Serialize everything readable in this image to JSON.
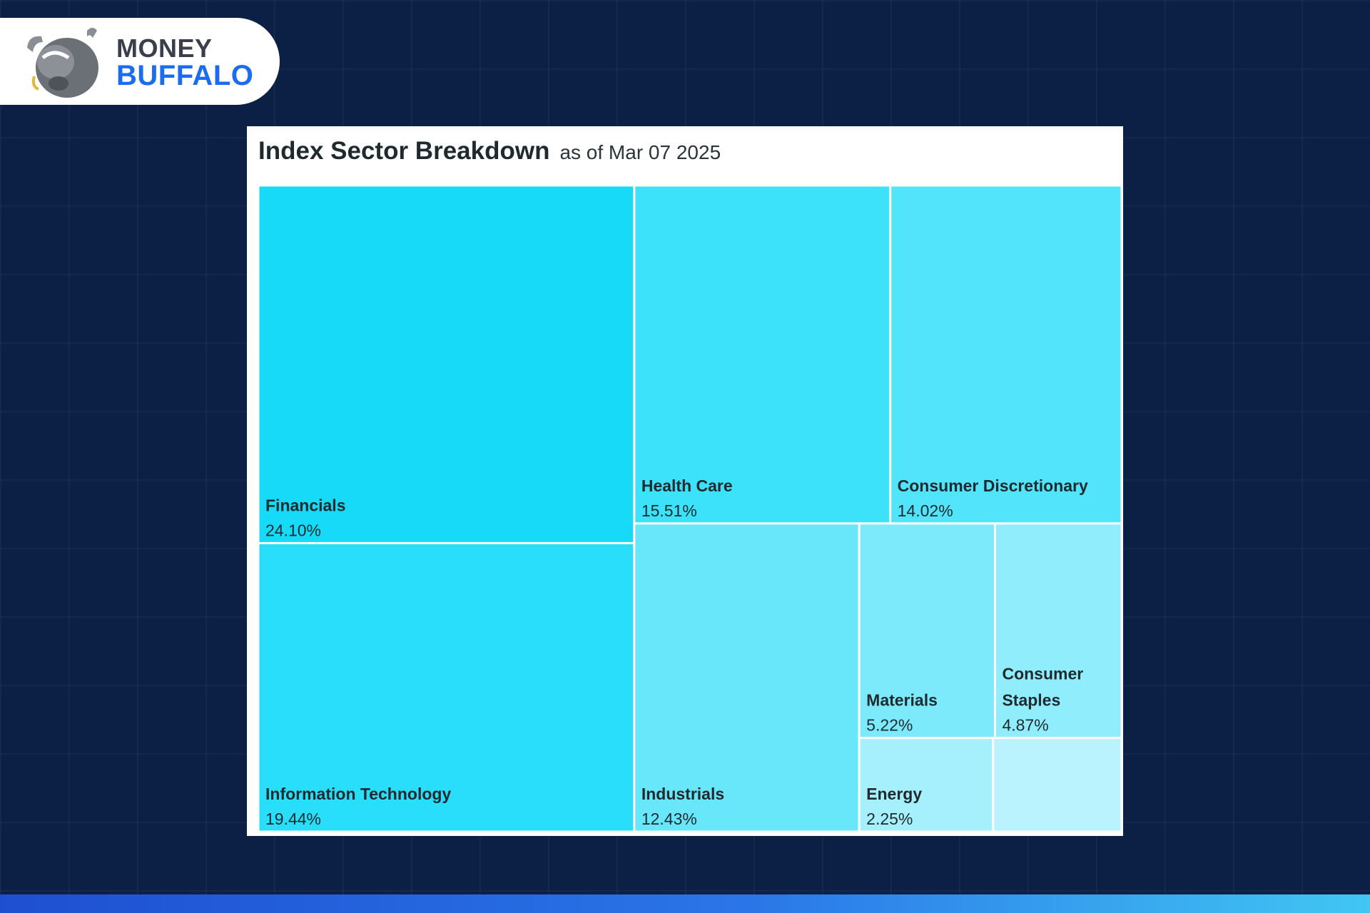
{
  "brand": {
    "line1": "MONEY",
    "line2": "BUFFALO",
    "colors": {
      "money": "#3a3f4b",
      "buffalo": "#1a6cf0"
    }
  },
  "colors": {
    "background": "#0c1f45",
    "card": "#ffffff",
    "label": "#1f2a2e"
  },
  "chart_data": {
    "type": "treemap",
    "title": "Index Sector Breakdown",
    "subtitle": "as of Mar 07 2025",
    "series": [
      {
        "name": "Financials",
        "value": 24.1,
        "label": "24.10%",
        "color": "#17daf9"
      },
      {
        "name": "Information Technology",
        "value": 19.44,
        "label": "19.44%",
        "color": "#29defa"
      },
      {
        "name": "Health Care",
        "value": 15.51,
        "label": "15.51%",
        "color": "#3ce1fa"
      },
      {
        "name": "Consumer Discretionary",
        "value": 14.02,
        "label": "14.02%",
        "color": "#52e4fb"
      },
      {
        "name": "Industrials",
        "value": 12.43,
        "label": "12.43%",
        "color": "#68e7fb"
      },
      {
        "name": "Materials",
        "value": 5.22,
        "label": "5.22%",
        "color": "#7deafc"
      },
      {
        "name": "Consumer Staples",
        "value": 4.87,
        "label": "4.87%",
        "color": "#90edfc"
      },
      {
        "name": "Energy",
        "value": 2.25,
        "label": "2.25%",
        "color": "#a6f0fd"
      },
      {
        "name": "",
        "value": 2.16,
        "label": "",
        "color": "#baf3fd"
      }
    ]
  }
}
